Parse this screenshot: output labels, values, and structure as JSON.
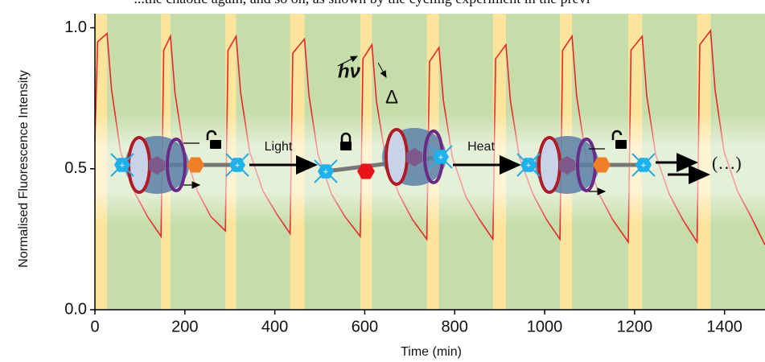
{
  "chart_data": {
    "type": "line",
    "caption_fragment": "...the chaotic again, and so on, as shown by the cycling experiment in the previ",
    "x_label": "Time (min)",
    "y_label": "Normalised Fluorescence Intensity",
    "xlim": [
      0,
      1490
    ],
    "ylim": [
      0,
      1.05
    ],
    "xticks": [
      0,
      200,
      400,
      600,
      800,
      1000,
      1200,
      1400
    ],
    "yticks": [
      {
        "value": 0,
        "label": "0.0"
      },
      {
        "value": 0.5,
        "label": "0.5"
      },
      {
        "value": 1,
        "label": "1.0"
      }
    ],
    "background_color": "#c6ddaa",
    "light_color": "#fce49c",
    "light_periods": [
      [
        0,
        27
      ],
      [
        147,
        168
      ],
      [
        290,
        314
      ],
      [
        434,
        466
      ],
      [
        590,
        616
      ],
      [
        738,
        765
      ],
      [
        885,
        914
      ],
      [
        1034,
        1061
      ],
      [
        1186,
        1217
      ],
      [
        1339,
        1369
      ]
    ],
    "x": [
      0,
      6,
      27,
      37,
      57,
      87,
      117,
      147,
      153,
      168,
      178,
      198,
      228,
      258,
      290,
      296,
      314,
      324,
      344,
      374,
      404,
      434,
      440,
      466,
      476,
      496,
      526,
      556,
      590,
      596,
      616,
      626,
      646,
      676,
      706,
      738,
      744,
      765,
      775,
      795,
      825,
      855,
      885,
      891,
      914,
      924,
      944,
      974,
      1004,
      1034,
      1040,
      1061,
      1071,
      1091,
      1121,
      1151,
      1186,
      1192,
      1217,
      1227,
      1247,
      1277,
      1307,
      1339,
      1345,
      1369,
      1379,
      1399,
      1429,
      1459,
      1490
    ],
    "series": [
      {
        "color": "#e8262a",
        "values": [
          0.6,
          0.95,
          0.98,
          0.78,
          0.56,
          0.42,
          0.33,
          0.26,
          0.92,
          0.97,
          0.77,
          0.56,
          0.42,
          0.33,
          0.28,
          0.92,
          0.97,
          0.77,
          0.56,
          0.42,
          0.34,
          0.27,
          0.91,
          0.96,
          0.76,
          0.55,
          0.41,
          0.33,
          0.26,
          0.89,
          0.94,
          0.74,
          0.54,
          0.41,
          0.32,
          0.25,
          0.88,
          0.93,
          0.74,
          0.54,
          0.4,
          0.32,
          0.25,
          0.89,
          0.94,
          0.74,
          0.54,
          0.41,
          0.32,
          0.25,
          0.92,
          0.97,
          0.76,
          0.55,
          0.41,
          0.32,
          0.24,
          0.92,
          0.97,
          0.76,
          0.55,
          0.41,
          0.32,
          0.24,
          0.94,
          0.99,
          0.78,
          0.56,
          0.42,
          0.33,
          0.23
        ]
      }
    ],
    "annotations": {
      "light": "Light",
      "heat": "Heat",
      "continuation": "(…)",
      "photon": "hν",
      "delta": "Δ"
    }
  }
}
